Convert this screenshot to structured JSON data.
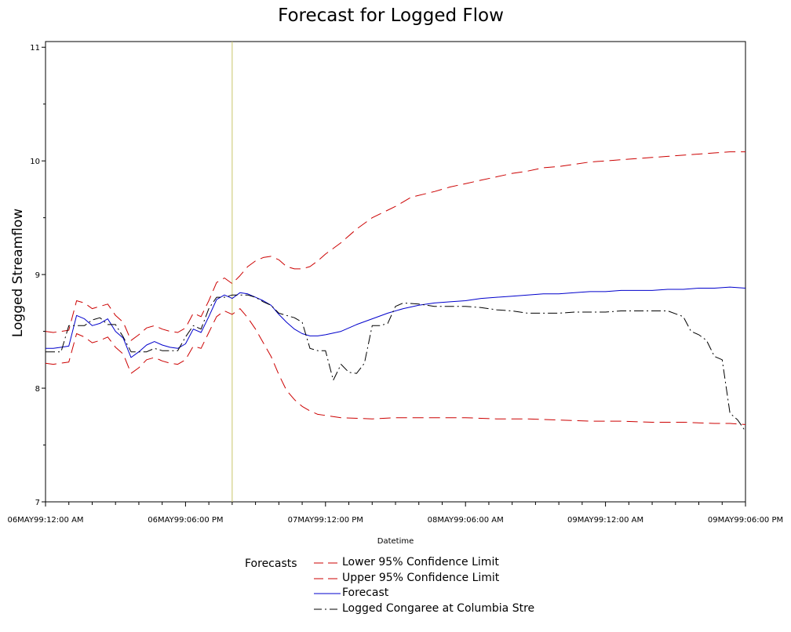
{
  "chart_data": {
    "type": "line",
    "title": "Forecast for Logged Flow",
    "xlabel": "Datetime",
    "ylabel": "Logged Streamflow",
    "xlim": [
      0,
      90
    ],
    "ylim": [
      7,
      11.05
    ],
    "x_ticks": [
      {
        "x": 0,
        "label": "06MAY99:12:00 AM"
      },
      {
        "x": 18,
        "label": "06MAY99:06:00 PM"
      },
      {
        "x": 36,
        "label": "07MAY99:12:00 PM"
      },
      {
        "x": 54,
        "label": "08MAY99:06:00 AM"
      },
      {
        "x": 72,
        "label": "09MAY99:12:00 AM"
      },
      {
        "x": 90,
        "label": "09MAY99:06:00 PM"
      }
    ],
    "x_unit": "hours after 06MAY99:12:00 AM",
    "y_ticks": [
      7,
      8,
      9,
      10,
      11
    ],
    "forecast_start_x": 24,
    "grid": false,
    "legend_title": "Forecasts",
    "legend_position": "bottom",
    "series": [
      {
        "name": "Lower 95% Confidence Limit",
        "color": "#cc0000",
        "dash": "dashed",
        "points": [
          [
            0,
            8.22
          ],
          [
            1,
            8.21
          ],
          [
            2,
            8.22
          ],
          [
            3,
            8.23
          ],
          [
            4,
            8.48
          ],
          [
            5,
            8.45
          ],
          [
            6,
            8.4
          ],
          [
            7,
            8.42
          ],
          [
            8,
            8.45
          ],
          [
            9,
            8.36
          ],
          [
            10,
            8.3
          ],
          [
            11,
            8.13
          ],
          [
            12,
            8.18
          ],
          [
            13,
            8.25
          ],
          [
            14,
            8.27
          ],
          [
            15,
            8.24
          ],
          [
            16,
            8.22
          ],
          [
            17,
            8.21
          ],
          [
            18,
            8.25
          ],
          [
            19,
            8.37
          ],
          [
            20,
            8.35
          ],
          [
            21,
            8.49
          ],
          [
            22,
            8.63
          ],
          [
            23,
            8.68
          ],
          [
            24,
            8.65
          ],
          [
            25,
            8.7
          ],
          [
            26,
            8.62
          ],
          [
            27,
            8.52
          ],
          [
            28,
            8.4
          ],
          [
            29,
            8.28
          ],
          [
            30,
            8.12
          ],
          [
            31,
            7.98
          ],
          [
            32,
            7.9
          ],
          [
            33,
            7.84
          ],
          [
            34,
            7.8
          ],
          [
            35,
            7.77
          ],
          [
            36,
            7.76
          ],
          [
            38,
            7.74
          ],
          [
            42,
            7.73
          ],
          [
            45,
            7.74
          ],
          [
            48,
            7.74
          ],
          [
            50,
            7.74
          ],
          [
            54,
            7.74
          ],
          [
            58,
            7.73
          ],
          [
            62,
            7.73
          ],
          [
            66,
            7.72
          ],
          [
            70,
            7.71
          ],
          [
            74,
            7.71
          ],
          [
            78,
            7.7
          ],
          [
            82,
            7.7
          ],
          [
            86,
            7.69
          ],
          [
            88,
            7.69
          ],
          [
            90,
            7.68
          ]
        ]
      },
      {
        "name": "Upper 95% Confidence Limit",
        "color": "#cc0000",
        "dash": "dashed",
        "points": [
          [
            0,
            8.5
          ],
          [
            1,
            8.49
          ],
          [
            2,
            8.5
          ],
          [
            3,
            8.51
          ],
          [
            4,
            8.77
          ],
          [
            5,
            8.75
          ],
          [
            6,
            8.7
          ],
          [
            7,
            8.72
          ],
          [
            8,
            8.74
          ],
          [
            9,
            8.64
          ],
          [
            10,
            8.58
          ],
          [
            11,
            8.42
          ],
          [
            12,
            8.47
          ],
          [
            13,
            8.53
          ],
          [
            14,
            8.55
          ],
          [
            15,
            8.52
          ],
          [
            16,
            8.5
          ],
          [
            17,
            8.49
          ],
          [
            18,
            8.53
          ],
          [
            19,
            8.66
          ],
          [
            20,
            8.63
          ],
          [
            21,
            8.77
          ],
          [
            22,
            8.93
          ],
          [
            23,
            8.97
          ],
          [
            24,
            8.92
          ],
          [
            25,
            8.99
          ],
          [
            26,
            9.07
          ],
          [
            27,
            9.12
          ],
          [
            28,
            9.15
          ],
          [
            29,
            9.16
          ],
          [
            30,
            9.13
          ],
          [
            31,
            9.07
          ],
          [
            32,
            9.05
          ],
          [
            33,
            9.05
          ],
          [
            34,
            9.07
          ],
          [
            35,
            9.12
          ],
          [
            36,
            9.18
          ],
          [
            38,
            9.28
          ],
          [
            40,
            9.4
          ],
          [
            42,
            9.5
          ],
          [
            45,
            9.6
          ],
          [
            47,
            9.68
          ],
          [
            50,
            9.73
          ],
          [
            52,
            9.77
          ],
          [
            54,
            9.8
          ],
          [
            56,
            9.83
          ],
          [
            58,
            9.86
          ],
          [
            60,
            9.89
          ],
          [
            62,
            9.91
          ],
          [
            64,
            9.94
          ],
          [
            66,
            9.95
          ],
          [
            68,
            9.97
          ],
          [
            70,
            9.99
          ],
          [
            72,
            10.0
          ],
          [
            74,
            10.01
          ],
          [
            76,
            10.02
          ],
          [
            78,
            10.03
          ],
          [
            80,
            10.04
          ],
          [
            82,
            10.05
          ],
          [
            84,
            10.06
          ],
          [
            86,
            10.07
          ],
          [
            88,
            10.08
          ],
          [
            90,
            10.08
          ]
        ]
      },
      {
        "name": "Forecast",
        "color": "#0000cc",
        "dash": "solid",
        "points": [
          [
            0,
            8.35
          ],
          [
            1,
            8.35
          ],
          [
            2,
            8.36
          ],
          [
            3,
            8.37
          ],
          [
            4,
            8.64
          ],
          [
            5,
            8.61
          ],
          [
            6,
            8.55
          ],
          [
            7,
            8.57
          ],
          [
            8,
            8.61
          ],
          [
            9,
            8.5
          ],
          [
            10,
            8.44
          ],
          [
            11,
            8.27
          ],
          [
            12,
            8.32
          ],
          [
            13,
            8.38
          ],
          [
            14,
            8.41
          ],
          [
            15,
            8.38
          ],
          [
            16,
            8.36
          ],
          [
            17,
            8.35
          ],
          [
            18,
            8.39
          ],
          [
            19,
            8.52
          ],
          [
            20,
            8.49
          ],
          [
            21,
            8.63
          ],
          [
            22,
            8.78
          ],
          [
            23,
            8.82
          ],
          [
            24,
            8.79
          ],
          [
            25,
            8.84
          ],
          [
            26,
            8.83
          ],
          [
            27,
            8.8
          ],
          [
            28,
            8.77
          ],
          [
            29,
            8.73
          ],
          [
            30,
            8.65
          ],
          [
            31,
            8.58
          ],
          [
            32,
            8.52
          ],
          [
            33,
            8.48
          ],
          [
            34,
            8.46
          ],
          [
            35,
            8.46
          ],
          [
            36,
            8.47
          ],
          [
            38,
            8.5
          ],
          [
            40,
            8.56
          ],
          [
            42,
            8.61
          ],
          [
            44,
            8.66
          ],
          [
            46,
            8.7
          ],
          [
            48,
            8.73
          ],
          [
            50,
            8.75
          ],
          [
            52,
            8.76
          ],
          [
            54,
            8.77
          ],
          [
            56,
            8.79
          ],
          [
            58,
            8.8
          ],
          [
            60,
            8.81
          ],
          [
            62,
            8.82
          ],
          [
            64,
            8.83
          ],
          [
            66,
            8.83
          ],
          [
            68,
            8.84
          ],
          [
            70,
            8.85
          ],
          [
            72,
            8.85
          ],
          [
            74,
            8.86
          ],
          [
            76,
            8.86
          ],
          [
            78,
            8.86
          ],
          [
            80,
            8.87
          ],
          [
            82,
            8.87
          ],
          [
            84,
            8.88
          ],
          [
            86,
            8.88
          ],
          [
            88,
            8.89
          ],
          [
            90,
            8.88
          ]
        ]
      },
      {
        "name": "Logged Congaree at Columbia Stre",
        "color": "#000000",
        "dash": "dashdot",
        "points": [
          [
            0,
            8.32
          ],
          [
            1,
            8.32
          ],
          [
            2,
            8.32
          ],
          [
            3,
            8.55
          ],
          [
            4,
            8.55
          ],
          [
            5,
            8.55
          ],
          [
            6,
            8.6
          ],
          [
            7,
            8.62
          ],
          [
            8,
            8.56
          ],
          [
            9,
            8.56
          ],
          [
            10,
            8.45
          ],
          [
            11,
            8.32
          ],
          [
            12,
            8.32
          ],
          [
            13,
            8.32
          ],
          [
            14,
            8.35
          ],
          [
            15,
            8.33
          ],
          [
            16,
            8.33
          ],
          [
            17,
            8.33
          ],
          [
            18,
            8.45
          ],
          [
            19,
            8.55
          ],
          [
            20,
            8.52
          ],
          [
            21,
            8.7
          ],
          [
            22,
            8.8
          ],
          [
            23,
            8.8
          ],
          [
            24,
            8.82
          ],
          [
            25,
            8.82
          ],
          [
            26,
            8.82
          ],
          [
            27,
            8.8
          ],
          [
            28,
            8.76
          ],
          [
            29,
            8.73
          ],
          [
            30,
            8.66
          ],
          [
            31,
            8.64
          ],
          [
            32,
            8.62
          ],
          [
            33,
            8.58
          ],
          [
            34,
            8.35
          ],
          [
            35,
            8.33
          ],
          [
            36,
            8.33
          ],
          [
            37,
            8.07
          ],
          [
            38,
            8.21
          ],
          [
            39,
            8.14
          ],
          [
            40,
            8.13
          ],
          [
            41,
            8.22
          ],
          [
            42,
            8.55
          ],
          [
            43,
            8.55
          ],
          [
            44,
            8.57
          ],
          [
            45,
            8.72
          ],
          [
            46,
            8.75
          ],
          [
            48,
            8.74
          ],
          [
            50,
            8.72
          ],
          [
            52,
            8.72
          ],
          [
            54,
            8.72
          ],
          [
            56,
            8.71
          ],
          [
            58,
            8.69
          ],
          [
            60,
            8.68
          ],
          [
            62,
            8.66
          ],
          [
            64,
            8.66
          ],
          [
            66,
            8.66
          ],
          [
            68,
            8.67
          ],
          [
            70,
            8.67
          ],
          [
            72,
            8.67
          ],
          [
            74,
            8.68
          ],
          [
            76,
            8.68
          ],
          [
            78,
            8.68
          ],
          [
            80,
            8.68
          ],
          [
            82,
            8.63
          ],
          [
            83,
            8.5
          ],
          [
            84,
            8.47
          ],
          [
            85,
            8.42
          ],
          [
            86,
            8.28
          ],
          [
            87,
            8.25
          ],
          [
            88,
            7.78
          ],
          [
            89,
            7.72
          ],
          [
            90,
            7.62
          ]
        ]
      }
    ]
  }
}
